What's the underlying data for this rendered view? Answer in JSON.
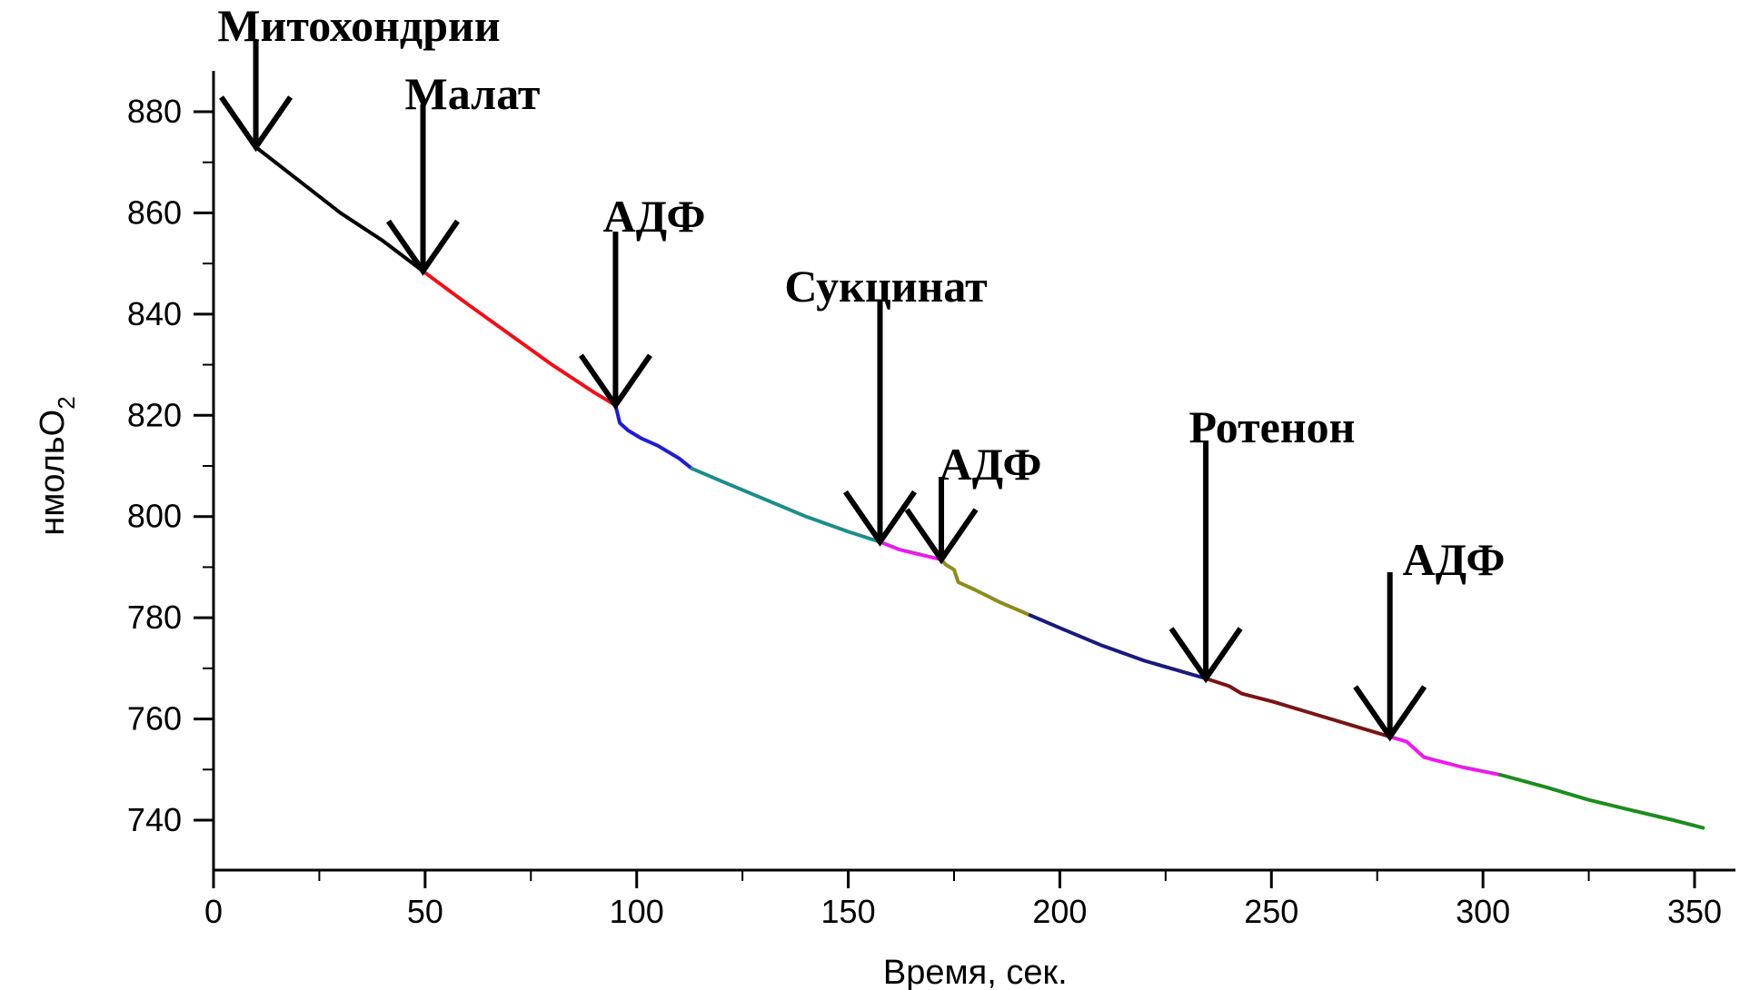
{
  "chart_data": {
    "type": "line",
    "title": "",
    "xlabel": "Время, сек.",
    "ylabel_main": "нмольО",
    "ylabel_sub": "2",
    "xlim": [
      0,
      355
    ],
    "ylim": [
      730,
      890
    ],
    "xticks": [
      0,
      50,
      100,
      150,
      200,
      250,
      300,
      350
    ],
    "xtick_labels": [
      "0",
      "50",
      "100",
      "150",
      "200",
      "250",
      "300",
      "350"
    ],
    "yticks": [
      740,
      760,
      780,
      800,
      820,
      840,
      860,
      880
    ],
    "ytick_labels": [
      "740",
      "760",
      "780",
      "800",
      "820",
      "840",
      "860",
      "880"
    ],
    "grid": false,
    "legend": "none",
    "series": [
      {
        "color": "#000000",
        "x": [
          10,
          20,
          30,
          40,
          49.5
        ],
        "y": [
          873,
          866.5,
          860,
          854.5,
          848.5
        ]
      },
      {
        "color": "#e8141b",
        "x": [
          49.5,
          60,
          70,
          80,
          90,
          95
        ],
        "y": [
          848.5,
          842,
          836,
          830,
          824.5,
          822
        ]
      },
      {
        "color": "#1f1fc8",
        "x": [
          95,
          96,
          98,
          101,
          105,
          110,
          113
        ],
        "y": [
          822,
          818.5,
          817,
          815.5,
          814,
          811.5,
          809.5
        ]
      },
      {
        "color": "#1e8c8c",
        "x": [
          113,
          120,
          130,
          140,
          150,
          157.5
        ],
        "y": [
          809.5,
          807,
          803.5,
          800,
          797,
          795
        ]
      },
      {
        "color": "#e61ee6",
        "x": [
          157.5,
          162,
          167,
          172
        ],
        "y": [
          795,
          793.5,
          792.5,
          791.5
        ]
      },
      {
        "color": "#8c8c1e",
        "x": [
          172,
          173,
          175,
          176,
          180,
          186,
          193
        ],
        "y": [
          791.5,
          790.5,
          789.5,
          787,
          785.5,
          783,
          780.5
        ]
      },
      {
        "color": "#1a1a7a",
        "x": [
          193,
          200,
          210,
          220,
          234.5
        ],
        "y": [
          780.5,
          778,
          774.5,
          771.5,
          768
        ]
      },
      {
        "color": "#7a1414",
        "x": [
          234.5,
          240,
          243,
          250,
          260,
          270,
          278
        ],
        "y": [
          768,
          766.5,
          765,
          763.5,
          761,
          758.5,
          756.5
        ]
      },
      {
        "color": "#e61ee6",
        "x": [
          278,
          282,
          284,
          286,
          288,
          295,
          304
        ],
        "y": [
          756.5,
          755.5,
          754,
          752.5,
          752,
          750.5,
          749
        ]
      },
      {
        "color": "#1e8c1e",
        "x": [
          304,
          315,
          325,
          335,
          345,
          352
        ],
        "y": [
          749,
          746.5,
          744,
          742,
          740,
          738.5
        ]
      }
    ],
    "annotations": [
      {
        "label": "Митохондрии",
        "x": 10,
        "y": 873
      },
      {
        "label": "Малат",
        "x": 49.5,
        "y": 848.5
      },
      {
        "label": "АДФ",
        "x": 95,
        "y": 822
      },
      {
        "label": "Сукцинат",
        "x": 157.5,
        "y": 795
      },
      {
        "label": "АДФ",
        "x": 172,
        "y": 791.5
      },
      {
        "label": "Ротенон",
        "x": 234.5,
        "y": 768
      },
      {
        "label": "АДФ",
        "x": 278,
        "y": 756.5
      }
    ]
  }
}
